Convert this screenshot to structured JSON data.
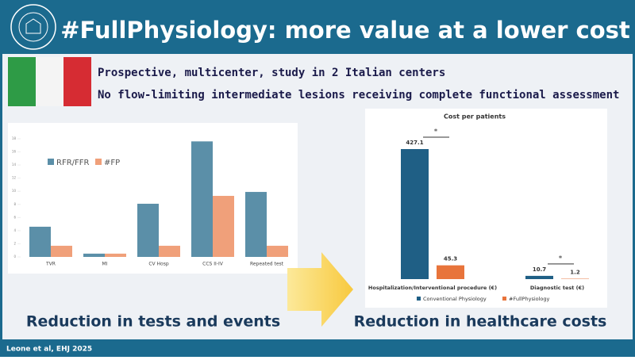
{
  "header": {
    "title": "#FullPhysiology: more value at a lower cost"
  },
  "study_points": [
    "Prospective, multicenter, study in 2 Italian centers",
    "No flow-limiting intermediate lesions receiving complete functional assessment"
  ],
  "chart_data": [
    {
      "type": "bar",
      "categories": [
        "TVR",
        "MI",
        "CV Hosp",
        "CCS II-IV",
        "Repeated test"
      ],
      "series": [
        {
          "name": "RFR/FFR",
          "color": "#5b8fa8",
          "values": [
            4.6,
            0.5,
            8.1,
            17.6,
            9.9
          ]
        },
        {
          "name": "#FP",
          "color": "#f0a07a",
          "values": [
            1.7,
            0.5,
            1.7,
            9.3,
            1.7
          ]
        }
      ],
      "ylim": [
        0,
        18
      ],
      "yticks": [
        0,
        2,
        4,
        6,
        8,
        10,
        12,
        14,
        16,
        18
      ],
      "legend": "top-left"
    },
    {
      "type": "bar",
      "title": "Cost per patients",
      "categories": [
        "Hospitalization/Interventional procedure (€)",
        "Diagnostic test (€)"
      ],
      "series": [
        {
          "name": "Conventional Physiology",
          "color": "#1f5f85",
          "values": [
            427.1,
            10.7
          ]
        },
        {
          "name": "#FullPhysiology",
          "color": "#e8743b",
          "values": [
            45.3,
            1.2
          ]
        }
      ],
      "annotations": [
        "*",
        "*"
      ],
      "legend": "bottom"
    }
  ],
  "captions": [
    "Reduction in tests and events",
    "Reduction in healthcare costs"
  ],
  "footer": "Leone et al, EHJ 2025"
}
